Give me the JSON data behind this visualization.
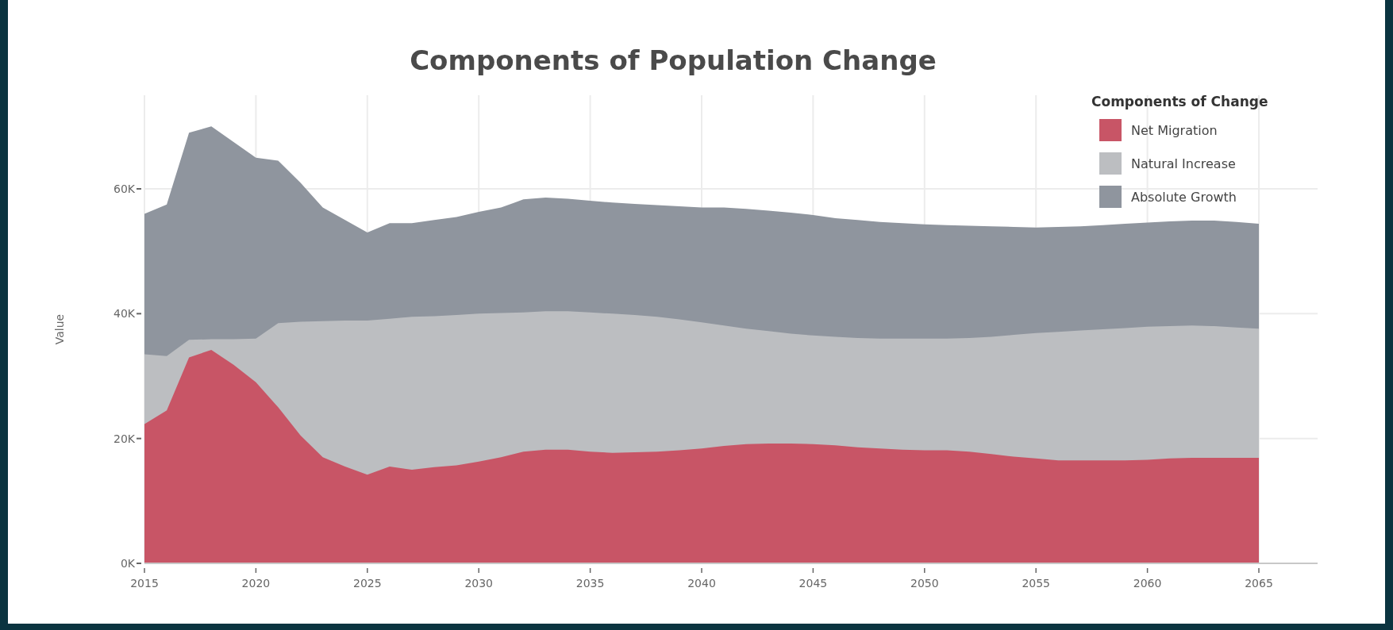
{
  "chart_data": {
    "type": "area",
    "title": "Components of Population Change",
    "ylabel": "Value",
    "legend_title": "Components of Change",
    "legend": "top right",
    "grid": true,
    "x": [
      2015,
      2016,
      2017,
      2018,
      2019,
      2020,
      2021,
      2022,
      2023,
      2024,
      2025,
      2026,
      2027,
      2028,
      2029,
      2030,
      2031,
      2032,
      2033,
      2034,
      2035,
      2036,
      2037,
      2038,
      2039,
      2040,
      2041,
      2042,
      2043,
      2044,
      2045,
      2046,
      2047,
      2048,
      2049,
      2050,
      2051,
      2052,
      2053,
      2054,
      2055,
      2056,
      2057,
      2058,
      2059,
      2060,
      2061,
      2062,
      2063,
      2064,
      2065
    ],
    "xlim": [
      2015,
      2065
    ],
    "xticks": [
      2015,
      2020,
      2025,
      2030,
      2035,
      2040,
      2045,
      2050,
      2055,
      2060,
      2065
    ],
    "ylim": [
      0,
      75000
    ],
    "yticks": [
      {
        "value": 0,
        "label": "0K"
      },
      {
        "value": 20000,
        "label": "20K"
      },
      {
        "value": 40000,
        "label": "40K"
      },
      {
        "value": 60000,
        "label": "60K"
      }
    ],
    "series": [
      {
        "name": "Net Migration",
        "color": "#c85566",
        "values": [
          22300,
          24500,
          33000,
          34200,
          31800,
          29000,
          25000,
          20500,
          17000,
          15500,
          14200,
          15500,
          15000,
          15400,
          15700,
          16300,
          17000,
          17900,
          18200,
          18200,
          17900,
          17700,
          17800,
          17900,
          18100,
          18400,
          18800,
          19100,
          19200,
          19200,
          19100,
          18900,
          18600,
          18400,
          18200,
          18100,
          18100,
          17900,
          17500,
          17100,
          16800,
          16500,
          16500,
          16500,
          16500,
          16600,
          16800,
          16900,
          16900,
          16900,
          16900
        ]
      },
      {
        "name": "Natural Increase",
        "color": "#bcbec1",
        "values": [
          33500,
          33200,
          35800,
          35900,
          35900,
          36000,
          38500,
          38700,
          38800,
          38900,
          38900,
          39200,
          39500,
          39600,
          39800,
          40000,
          40100,
          40200,
          40400,
          40400,
          40200,
          40000,
          39800,
          39500,
          39100,
          38600,
          38100,
          37600,
          37200,
          36800,
          36500,
          36300,
          36100,
          36000,
          36000,
          36000,
          36000,
          36100,
          36300,
          36600,
          36900,
          37100,
          37300,
          37500,
          37700,
          37900,
          38000,
          38100,
          38000,
          37800,
          37600
        ]
      },
      {
        "name": "Absolute Growth",
        "color": "#8f959e",
        "values": [
          56000,
          57500,
          69000,
          70000,
          67500,
          65000,
          64500,
          61000,
          57000,
          55000,
          53000,
          54500,
          54500,
          55000,
          55500,
          56300,
          57000,
          58300,
          58600,
          58400,
          58100,
          57800,
          57600,
          57400,
          57200,
          57000,
          57000,
          56800,
          56500,
          56200,
          55800,
          55300,
          55000,
          54700,
          54500,
          54300,
          54200,
          54100,
          54000,
          53900,
          53800,
          53900,
          54000,
          54200,
          54400,
          54600,
          54800,
          54900,
          54900,
          54700,
          54400
        ]
      }
    ]
  }
}
